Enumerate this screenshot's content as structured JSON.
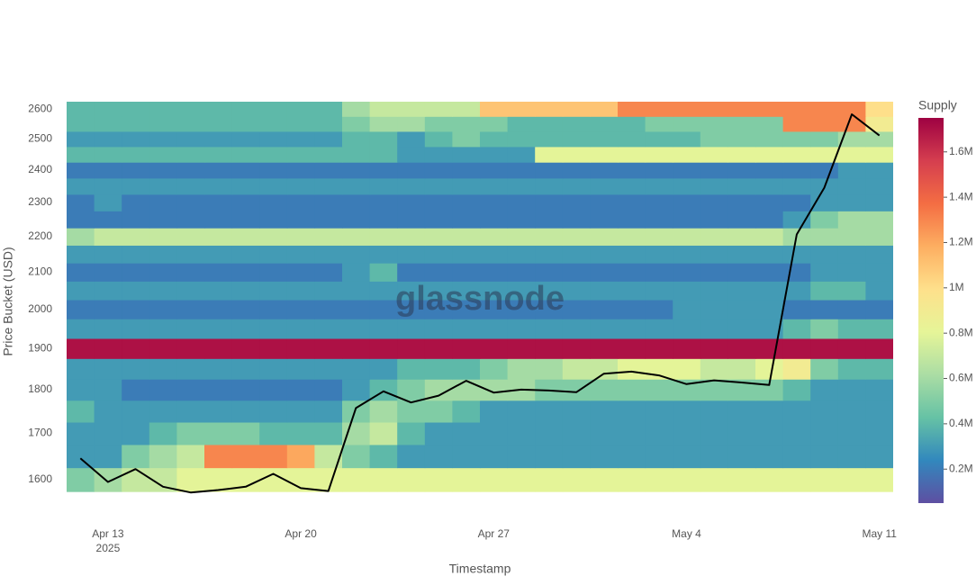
{
  "chart_data": {
    "type": "heatmap",
    "x_label": "Timestamp",
    "y_label": "Price Bucket (USD)",
    "watermark": "glassnode",
    "x": [
      "2025-04-12",
      "2025-04-13",
      "2025-04-14",
      "2025-04-15",
      "2025-04-16",
      "2025-04-17",
      "2025-04-18",
      "2025-04-19",
      "2025-04-20",
      "2025-04-21",
      "2025-04-22",
      "2025-04-23",
      "2025-04-24",
      "2025-04-25",
      "2025-04-26",
      "2025-04-27",
      "2025-04-28",
      "2025-04-29",
      "2025-04-30",
      "2025-05-01",
      "2025-05-02",
      "2025-05-03",
      "2025-05-04",
      "2025-05-05",
      "2025-05-06",
      "2025-05-07",
      "2025-05-08",
      "2025-05-09",
      "2025-05-10",
      "2025-05-11"
    ],
    "xlim": [
      "2025-04-11T12:00",
      "2025-05-11T12:00"
    ],
    "xticks": [
      {
        "value": "2025-04-13",
        "label": "Apr 13"
      },
      {
        "value": "2025-04-20",
        "label": "Apr 20"
      },
      {
        "value": "2025-04-27",
        "label": "Apr 27"
      },
      {
        "value": "2025-05-04",
        "label": "May 4"
      },
      {
        "value": "2025-05-11",
        "label": "May 11"
      }
    ],
    "x_year_label": "2025",
    "y": [
      1600,
      1650,
      1700,
      1750,
      1800,
      1850,
      1900,
      1950,
      2000,
      2050,
      2100,
      2150,
      2200,
      2250,
      2300,
      2350,
      2400,
      2450,
      2500,
      2550,
      2600
    ],
    "ylim": [
      1555,
      2625
    ],
    "yscale": "log",
    "yticks": [
      1600,
      1700,
      1800,
      1900,
      2000,
      2100,
      2200,
      2300,
      2400,
      2500,
      2600
    ],
    "z": [
      [
        0.5,
        0.6,
        0.7,
        0.7,
        0.8,
        0.8,
        0.8,
        0.8,
        0.8,
        0.8,
        0.8,
        0.8,
        0.8,
        0.8,
        0.8,
        0.8,
        0.8,
        0.8,
        0.8,
        0.8,
        0.8,
        0.8,
        0.8,
        0.8,
        0.8,
        0.8,
        0.8,
        0.8,
        0.8,
        0.8
      ],
      [
        0.3,
        0.3,
        0.5,
        0.6,
        0.7,
        1.3,
        1.3,
        1.3,
        1.2,
        0.7,
        0.5,
        0.4,
        0.3,
        0.3,
        0.3,
        0.3,
        0.3,
        0.3,
        0.3,
        0.3,
        0.3,
        0.3,
        0.3,
        0.3,
        0.3,
        0.3,
        0.3,
        0.3,
        0.3,
        0.3
      ],
      [
        0.3,
        0.3,
        0.3,
        0.4,
        0.5,
        0.5,
        0.5,
        0.4,
        0.4,
        0.4,
        0.6,
        0.7,
        0.4,
        0.3,
        0.3,
        0.3,
        0.3,
        0.3,
        0.3,
        0.3,
        0.3,
        0.3,
        0.3,
        0.3,
        0.3,
        0.3,
        0.3,
        0.3,
        0.3,
        0.3
      ],
      [
        0.4,
        0.3,
        0.3,
        0.3,
        0.3,
        0.3,
        0.3,
        0.3,
        0.3,
        0.3,
        0.5,
        0.6,
        0.5,
        0.5,
        0.4,
        0.3,
        0.3,
        0.3,
        0.3,
        0.3,
        0.3,
        0.3,
        0.3,
        0.3,
        0.3,
        0.3,
        0.3,
        0.3,
        0.3,
        0.3
      ],
      [
        0.3,
        0.3,
        0.2,
        0.2,
        0.2,
        0.2,
        0.2,
        0.2,
        0.2,
        0.2,
        0.3,
        0.4,
        0.5,
        0.6,
        0.6,
        0.6,
        0.6,
        0.5,
        0.5,
        0.5,
        0.5,
        0.5,
        0.5,
        0.5,
        0.5,
        0.5,
        0.4,
        0.3,
        0.3,
        0.3
      ],
      [
        0.3,
        0.3,
        0.3,
        0.3,
        0.3,
        0.3,
        0.3,
        0.3,
        0.3,
        0.3,
        0.3,
        0.3,
        0.4,
        0.4,
        0.4,
        0.5,
        0.6,
        0.6,
        0.7,
        0.7,
        0.8,
        0.8,
        0.8,
        0.7,
        0.7,
        0.8,
        0.9,
        0.5,
        0.4,
        0.4
      ],
      [
        1.7,
        1.7,
        1.7,
        1.7,
        1.7,
        1.7,
        1.7,
        1.7,
        1.7,
        1.7,
        1.7,
        1.7,
        1.7,
        1.7,
        1.7,
        1.7,
        1.7,
        1.7,
        1.7,
        1.7,
        1.7,
        1.7,
        1.7,
        1.7,
        1.7,
        1.7,
        1.7,
        1.7,
        1.7,
        1.7
      ],
      [
        0.3,
        0.3,
        0.3,
        0.3,
        0.3,
        0.3,
        0.3,
        0.3,
        0.3,
        0.3,
        0.3,
        0.3,
        0.3,
        0.3,
        0.3,
        0.3,
        0.3,
        0.3,
        0.3,
        0.3,
        0.3,
        0.3,
        0.3,
        0.3,
        0.3,
        0.3,
        0.4,
        0.5,
        0.4,
        0.4
      ],
      [
        0.2,
        0.2,
        0.2,
        0.2,
        0.2,
        0.2,
        0.2,
        0.2,
        0.2,
        0.2,
        0.2,
        0.2,
        0.2,
        0.2,
        0.2,
        0.2,
        0.2,
        0.2,
        0.2,
        0.2,
        0.2,
        0.2,
        0.3,
        0.3,
        0.3,
        0.3,
        0.2,
        0.2,
        0.2,
        0.2
      ],
      [
        0.3,
        0.3,
        0.3,
        0.3,
        0.3,
        0.3,
        0.3,
        0.3,
        0.3,
        0.3,
        0.3,
        0.3,
        0.3,
        0.3,
        0.3,
        0.3,
        0.3,
        0.3,
        0.3,
        0.3,
        0.3,
        0.3,
        0.3,
        0.3,
        0.3,
        0.3,
        0.3,
        0.4,
        0.4,
        0.3
      ],
      [
        0.2,
        0.2,
        0.2,
        0.2,
        0.2,
        0.2,
        0.2,
        0.2,
        0.2,
        0.2,
        0.3,
        0.4,
        0.2,
        0.2,
        0.2,
        0.2,
        0.2,
        0.2,
        0.2,
        0.2,
        0.2,
        0.2,
        0.2,
        0.2,
        0.2,
        0.2,
        0.2,
        0.3,
        0.3,
        0.3
      ],
      [
        0.3,
        0.3,
        0.3,
        0.3,
        0.3,
        0.3,
        0.3,
        0.3,
        0.3,
        0.3,
        0.3,
        0.3,
        0.3,
        0.3,
        0.3,
        0.3,
        0.3,
        0.3,
        0.3,
        0.3,
        0.3,
        0.3,
        0.3,
        0.3,
        0.3,
        0.3,
        0.3,
        0.3,
        0.3,
        0.3
      ],
      [
        0.6,
        0.7,
        0.7,
        0.7,
        0.7,
        0.7,
        0.7,
        0.7,
        0.7,
        0.7,
        0.7,
        0.7,
        0.7,
        0.7,
        0.7,
        0.7,
        0.7,
        0.7,
        0.7,
        0.7,
        0.7,
        0.7,
        0.7,
        0.7,
        0.7,
        0.7,
        0.6,
        0.6,
        0.6,
        0.6
      ],
      [
        0.2,
        0.2,
        0.2,
        0.2,
        0.2,
        0.2,
        0.2,
        0.2,
        0.2,
        0.2,
        0.2,
        0.2,
        0.2,
        0.2,
        0.2,
        0.2,
        0.2,
        0.2,
        0.2,
        0.2,
        0.2,
        0.2,
        0.2,
        0.2,
        0.2,
        0.2,
        0.3,
        0.5,
        0.6,
        0.6
      ],
      [
        0.2,
        0.3,
        0.2,
        0.2,
        0.2,
        0.2,
        0.2,
        0.2,
        0.2,
        0.2,
        0.2,
        0.2,
        0.2,
        0.2,
        0.2,
        0.2,
        0.2,
        0.2,
        0.2,
        0.2,
        0.2,
        0.2,
        0.2,
        0.2,
        0.2,
        0.2,
        0.2,
        0.3,
        0.3,
        0.3
      ],
      [
        0.3,
        0.3,
        0.3,
        0.3,
        0.3,
        0.3,
        0.3,
        0.3,
        0.3,
        0.3,
        0.3,
        0.3,
        0.3,
        0.3,
        0.3,
        0.3,
        0.3,
        0.3,
        0.3,
        0.3,
        0.3,
        0.3,
        0.3,
        0.3,
        0.3,
        0.3,
        0.3,
        0.3,
        0.3,
        0.3
      ],
      [
        0.2,
        0.2,
        0.2,
        0.2,
        0.2,
        0.2,
        0.2,
        0.2,
        0.2,
        0.2,
        0.2,
        0.2,
        0.2,
        0.2,
        0.2,
        0.2,
        0.2,
        0.2,
        0.2,
        0.2,
        0.2,
        0.2,
        0.2,
        0.2,
        0.2,
        0.2,
        0.2,
        0.2,
        0.3,
        0.3
      ],
      [
        0.4,
        0.4,
        0.4,
        0.4,
        0.4,
        0.4,
        0.4,
        0.4,
        0.4,
        0.4,
        0.4,
        0.4,
        0.3,
        0.3,
        0.3,
        0.3,
        0.3,
        0.8,
        0.8,
        0.8,
        0.8,
        0.8,
        0.8,
        0.8,
        0.8,
        0.8,
        0.8,
        0.8,
        0.8,
        0.8
      ],
      [
        0.3,
        0.3,
        0.3,
        0.3,
        0.3,
        0.3,
        0.3,
        0.3,
        0.3,
        0.3,
        0.4,
        0.4,
        0.3,
        0.4,
        0.5,
        0.4,
        0.4,
        0.4,
        0.4,
        0.4,
        0.4,
        0.4,
        0.4,
        0.5,
        0.5,
        0.5,
        0.5,
        0.5,
        0.6,
        0.6
      ],
      [
        0.4,
        0.4,
        0.4,
        0.4,
        0.4,
        0.4,
        0.4,
        0.4,
        0.4,
        0.4,
        0.5,
        0.6,
        0.6,
        0.5,
        0.5,
        0.5,
        0.4,
        0.4,
        0.4,
        0.4,
        0.4,
        0.5,
        0.5,
        0.5,
        0.5,
        0.5,
        1.3,
        1.3,
        1.3,
        0.9
      ],
      [
        0.4,
        0.4,
        0.4,
        0.4,
        0.4,
        0.4,
        0.4,
        0.4,
        0.4,
        0.4,
        0.6,
        0.7,
        0.7,
        0.7,
        0.7,
        1.1,
        1.1,
        1.1,
        1.1,
        1.1,
        1.3,
        1.3,
        1.3,
        1.3,
        1.3,
        1.3,
        1.3,
        1.3,
        1.3,
        1.0
      ]
    ],
    "colorscale": [
      "#5e4fa2",
      "#3288bd",
      "#66c2a5",
      "#abdda4",
      "#e6f598",
      "#fee08b",
      "#fdae61",
      "#f46d43",
      "#d53e4f",
      "#9e0142"
    ],
    "zlim": [
      0.05,
      1.75
    ],
    "zticks": [
      {
        "value": 0.2,
        "label": "0.2M"
      },
      {
        "value": 0.4,
        "label": "0.4M"
      },
      {
        "value": 0.6,
        "label": "0.6M"
      },
      {
        "value": 0.8,
        "label": "0.8M"
      },
      {
        "value": 1,
        "label": "1M"
      },
      {
        "value": 1.2,
        "label": "1.2M"
      },
      {
        "value": 1.4,
        "label": "1.4M"
      },
      {
        "value": 1.6,
        "label": "1.6M"
      }
    ],
    "colorbar_title": "Supply",
    "line_values": [
      1645,
      1595,
      1622,
      1585,
      1573,
      1578,
      1585,
      1612,
      1582,
      1576,
      1757,
      1796,
      1770,
      1786,
      1821,
      1793,
      1800,
      1798,
      1794,
      1838,
      1843,
      1834,
      1813,
      1822,
      1817,
      1811,
      2206,
      2345,
      2582,
      2511
    ],
    "line_color": "#000000"
  }
}
